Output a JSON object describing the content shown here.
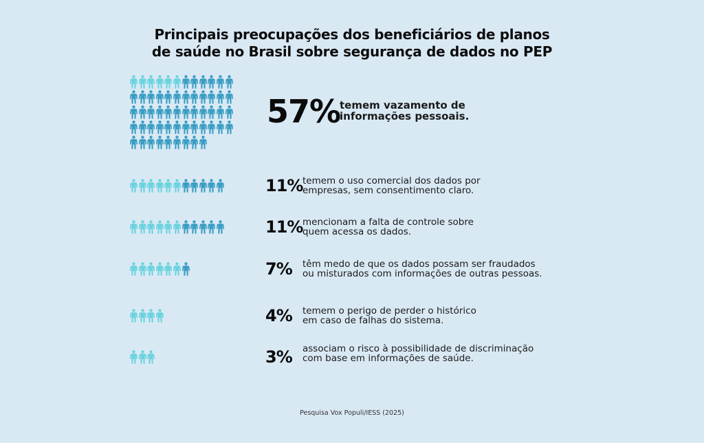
{
  "title": {
    "line1": "Principais preocupações dos beneficiários de planos",
    "line2": "de saúde no Brasil sobre segurança de dados no PEP"
  },
  "colors": {
    "background": "#d9e9f4",
    "icon_light": "#6ad3df",
    "icon_dark": "#3a9dc3",
    "text": "#0d0d0d"
  },
  "chart_data": {
    "type": "pictogram",
    "title": "Principais preocupações dos beneficiários de planos de saúde no Brasil sobre segurança de dados no PEP",
    "unit": "%",
    "icon": "person-icon",
    "icons_per_row": 12,
    "light_icons_per_item": 6,
    "items": [
      {
        "value": 57,
        "label": "57%",
        "line1": "temem vazamento de",
        "line2": "informações pessoais."
      },
      {
        "value": 11,
        "label": "11%",
        "line1": "temem o uso comercial dos dados por",
        "line2": "empresas, sem consentimento claro."
      },
      {
        "value": 11,
        "label": "11%",
        "line1": "mencionam a falta de controle sobre",
        "line2": "quem acessa os dados."
      },
      {
        "value": 7,
        "label": "7%",
        "line1": "têm medo de que os dados possam ser fraudados",
        "line2": "ou misturados com informações de outras pessoas."
      },
      {
        "value": 4,
        "label": "4%",
        "line1": "temem o perigo de perder o histórico",
        "line2": "em caso de falhas do sistema."
      },
      {
        "value": 3,
        "label": "3%",
        "line1": "associam o risco à possibilidade de discriminação",
        "line2": "com base em informações de saúde."
      }
    ]
  },
  "source": "Pesquisa Vox Populi/IESS (2025)"
}
